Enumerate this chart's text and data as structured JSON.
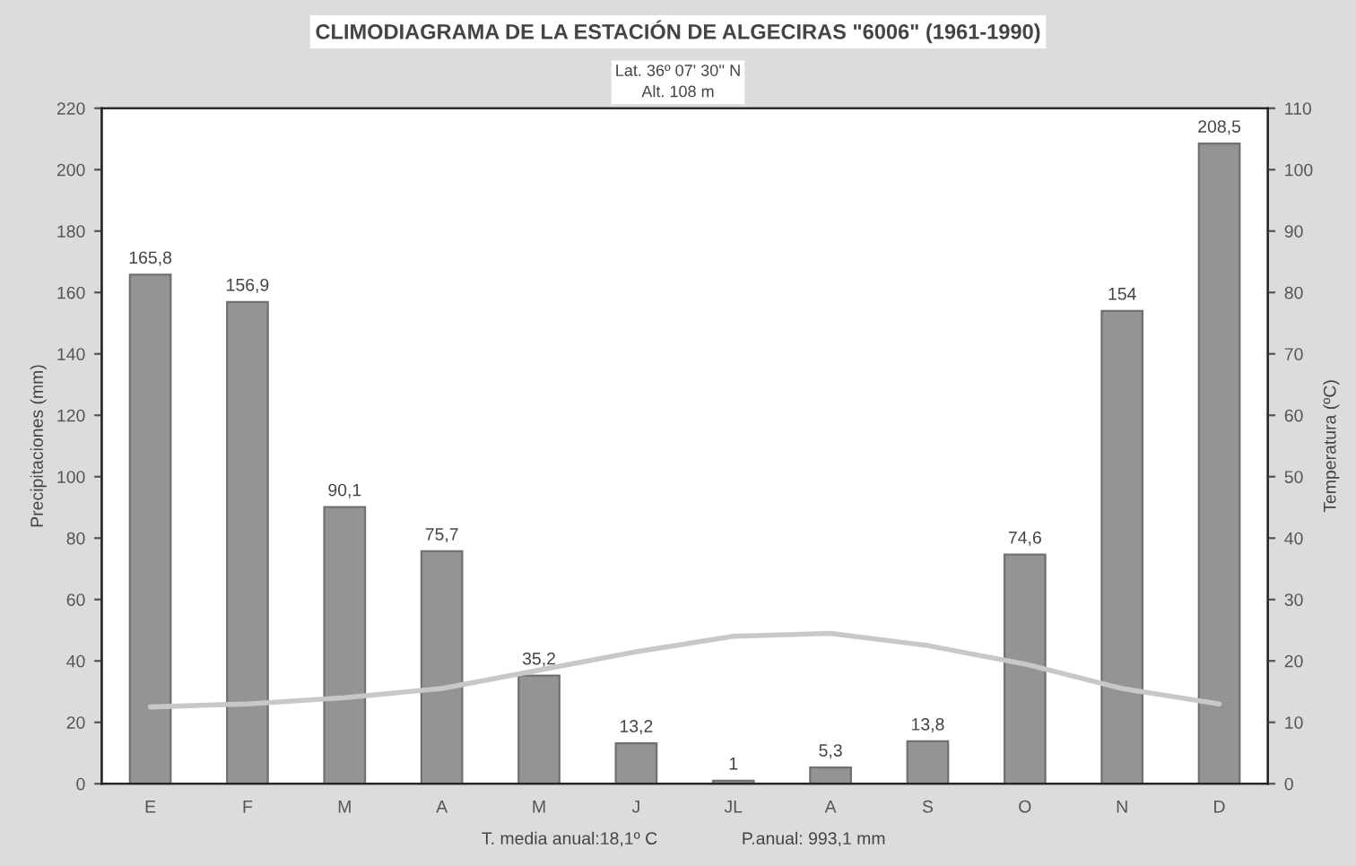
{
  "chart_data": {
    "type": "bar",
    "title": "CLIMODIAGRAMA DE LA ESTACIÓN DE ALGECIRAS \"6006\" (1961-1990)",
    "subtitle": "Lat. 36º 07' 30'' N\nAlt. 108 m",
    "categories": [
      "E",
      "F",
      "M",
      "A",
      "M",
      "J",
      "JL",
      "A",
      "S",
      "O",
      "N",
      "D"
    ],
    "series": [
      {
        "color": "#949494",
        "values": [
          165.8,
          156.9,
          90.1,
          75.7,
          35.2,
          13.2,
          1,
          5.3,
          13.8,
          74.6,
          154,
          208.5
        ],
        "value_labels": [
          "165,8",
          "156,9",
          "90,1",
          "75,7",
          "35,2",
          "13,2",
          "1",
          "5,3",
          "13,8",
          "74,6",
          "154",
          "208,5"
        ]
      },
      {
        "type": "line",
        "axis": "y2",
        "color": "#c8c8c8",
        "values": [
          12.5,
          13,
          14,
          15.5,
          18.5,
          21.5,
          24,
          24.5,
          22.5,
          19.5,
          15.5,
          13
        ]
      }
    ],
    "ylabel": "Precipitaciones (mm)",
    "y2label": "Temperatura (ºC)",
    "ylim": [
      0,
      220
    ],
    "yticks": [
      0,
      20,
      40,
      60,
      80,
      100,
      120,
      140,
      160,
      180,
      200,
      220
    ],
    "y2lim": [
      0,
      110
    ],
    "y2ticks": [
      0,
      10,
      20,
      30,
      40,
      50,
      60,
      70,
      80,
      90,
      100,
      110
    ],
    "annotations": [
      "T. media anual:18,1º C",
      "P.anual: 993,1 mm"
    ],
    "grid": false,
    "legend": false
  }
}
